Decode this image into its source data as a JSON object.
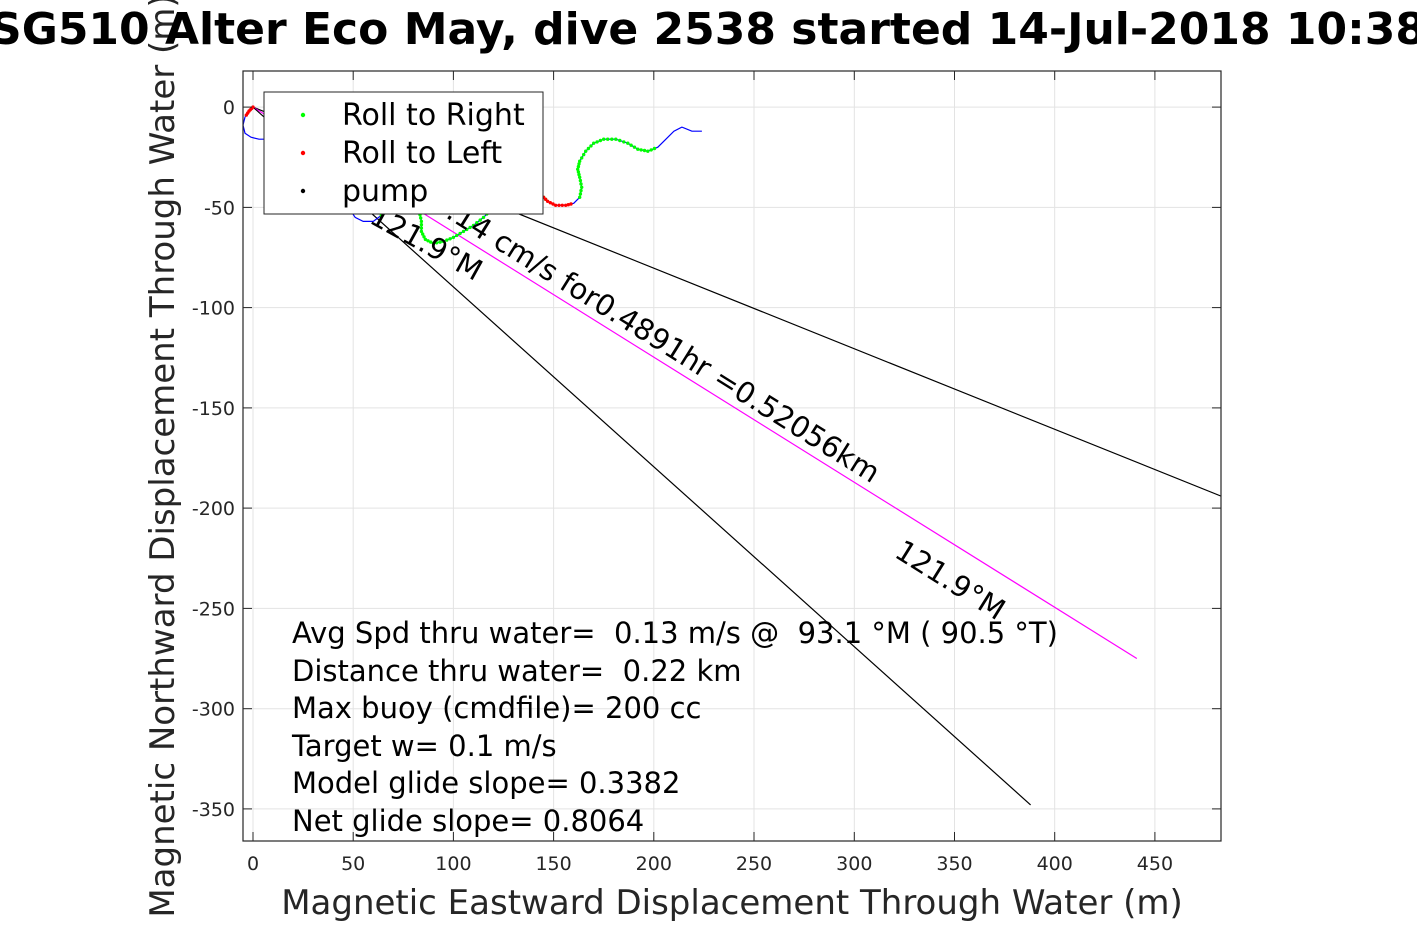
{
  "chart_data": {
    "type": "line",
    "title": "SG510 Alter Eco May, dive 2538 started 14-Jul-2018 10:38",
    "xlabel": "Magnetic Eastward Displacement Through Water (m)",
    "ylabel": "Magnetic Northward Displacement Through Water (m)",
    "xlim": [
      -5,
      483
    ],
    "ylim": [
      -366,
      18
    ],
    "xticks": [
      0,
      50,
      100,
      150,
      200,
      250,
      300,
      350,
      400,
      450
    ],
    "yticks": [
      0,
      -50,
      -100,
      -150,
      -200,
      -250,
      -300,
      -350
    ],
    "grid": true,
    "legend": {
      "placement": "top-left",
      "entries": [
        {
          "label": "Roll to Right",
          "color": "#00ff00"
        },
        {
          "label": "Roll to Left",
          "color": "#ff0000"
        },
        {
          "label": "pump",
          "color": "#000000"
        }
      ]
    },
    "track": {
      "color": "#0000ff",
      "points": [
        [
          0,
          0
        ],
        [
          -2,
          -2
        ],
        [
          -4,
          -5
        ],
        [
          -5,
          -9
        ],
        [
          -4,
          -13
        ],
        [
          -1,
          -15
        ],
        [
          3,
          -16
        ],
        [
          8,
          -16
        ],
        [
          12,
          -15
        ],
        [
          16,
          -13
        ],
        [
          20,
          -14
        ],
        [
          24,
          -18
        ],
        [
          28,
          -23
        ],
        [
          33,
          -28
        ],
        [
          38,
          -33
        ],
        [
          43,
          -38
        ],
        [
          47,
          -43
        ],
        [
          48,
          -48
        ],
        [
          49,
          -52
        ],
        [
          51,
          -55
        ],
        [
          55,
          -57
        ],
        [
          60,
          -57
        ],
        [
          64,
          -54
        ],
        [
          66,
          -50
        ],
        [
          68,
          -46
        ],
        [
          71,
          -44
        ],
        [
          76,
          -44
        ],
        [
          80,
          -47
        ],
        [
          83,
          -52
        ],
        [
          84,
          -57
        ],
        [
          84,
          -62
        ],
        [
          86,
          -66
        ],
        [
          90,
          -68
        ],
        [
          95,
          -67
        ],
        [
          100,
          -65
        ],
        [
          105,
          -62
        ],
        [
          110,
          -59
        ],
        [
          115,
          -55
        ],
        [
          120,
          -50
        ],
        [
          126,
          -44
        ],
        [
          132,
          -40
        ],
        [
          137,
          -38
        ],
        [
          141,
          -40
        ],
        [
          144,
          -44
        ],
        [
          147,
          -47
        ],
        [
          151,
          -49
        ],
        [
          156,
          -49
        ],
        [
          160,
          -48
        ],
        [
          163,
          -45
        ],
        [
          164,
          -40
        ],
        [
          163,
          -35
        ],
        [
          162,
          -31
        ],
        [
          163,
          -27
        ],
        [
          166,
          -22
        ],
        [
          170,
          -18
        ],
        [
          175,
          -16
        ],
        [
          181,
          -16
        ],
        [
          187,
          -18
        ],
        [
          192,
          -21
        ],
        [
          197,
          -22
        ],
        [
          202,
          -20
        ],
        [
          206,
          -16
        ],
        [
          210,
          -12
        ],
        [
          214,
          -10
        ],
        [
          219,
          -12
        ],
        [
          224,
          -12
        ]
      ]
    },
    "roll_right_segments": [
      [
        22,
        44
      ],
      [
        48,
        60
      ]
    ],
    "roll_left_segments": [
      [
        0,
        2
      ],
      [
        43,
        47
      ]
    ],
    "heading_lines": [
      {
        "name": "model",
        "x": [
          0,
          483
        ],
        "y": [
          0,
          -194
        ],
        "color": "#000000"
      },
      {
        "name": "net",
        "x": [
          0,
          441
        ],
        "y": [
          0,
          -275
        ],
        "color": "#ff00ff"
      },
      {
        "name": "current",
        "x": [
          0,
          388
        ],
        "y": [
          0,
          -348
        ],
        "color": "#000000"
      }
    ],
    "annotations": {
      "flight_text": "0.14 cm/s for0.4891hr =0.52056km",
      "heading_upper": "121.9°M",
      "heading_lower": "121.9°M",
      "stats": [
        "Avg Spd thru water=  0.13 m/s @  93.1 °M ( 90.5 °T)",
        "Distance thru water=  0.22 km",
        "Max buoy (cmdfile)= 200 cc",
        "Target w= 0.1 m/s",
        "Model glide slope= 0.3382",
        "Net glide slope= 0.8064"
      ]
    }
  }
}
